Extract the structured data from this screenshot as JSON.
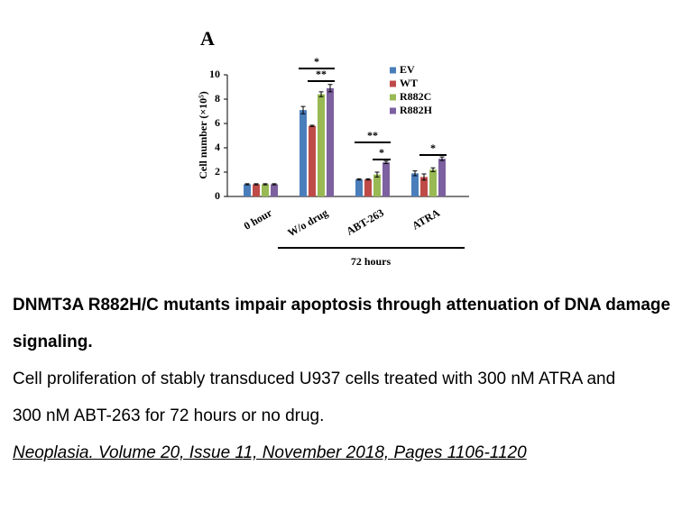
{
  "chart_data": {
    "type": "bar",
    "panel_label": "A",
    "y_label": "Cell number (×10⁵)",
    "categories": [
      "0 hour",
      "W/o drug",
      "ABT-263",
      "ATRA"
    ],
    "series": [
      {
        "name": "EV",
        "color": "#4a7ebb",
        "values": [
          1.0,
          7.1,
          1.4,
          1.9
        ],
        "errors": [
          0.05,
          0.3,
          0.05,
          0.2
        ]
      },
      {
        "name": "WT",
        "color": "#be4b48",
        "values": [
          1.0,
          5.8,
          1.4,
          1.6
        ],
        "errors": [
          0.05,
          0.05,
          0.05,
          0.25
        ]
      },
      {
        "name": "R882C",
        "color": "#98b954",
        "values": [
          1.0,
          8.4,
          1.8,
          2.2
        ],
        "errors": [
          0.05,
          0.2,
          0.2,
          0.15
        ]
      },
      {
        "name": "R882H",
        "color": "#7d60a0",
        "values": [
          1.0,
          8.9,
          2.8,
          3.1
        ],
        "errors": [
          0.05,
          0.3,
          0.1,
          0.15
        ]
      }
    ],
    "ylim": [
      0,
      10
    ],
    "yticks": [
      0,
      2,
      4,
      6,
      8,
      10
    ],
    "annotations": [
      "*",
      "**",
      "**",
      "*",
      "*"
    ],
    "group_label": "72 hours"
  },
  "caption": {
    "title": "DNMT3A R882H/C mutants impair apoptosis through attenuation of DNA damage signaling.",
    "text": "Cell proliferation of stably transduced U937 cells treated with 300 nM ATRA and 300 nM ABT-263 for 72 hours or no drug.",
    "citation": "Neoplasia. Volume 20, Issue 11, November 2018, Pages 1106-1120"
  }
}
